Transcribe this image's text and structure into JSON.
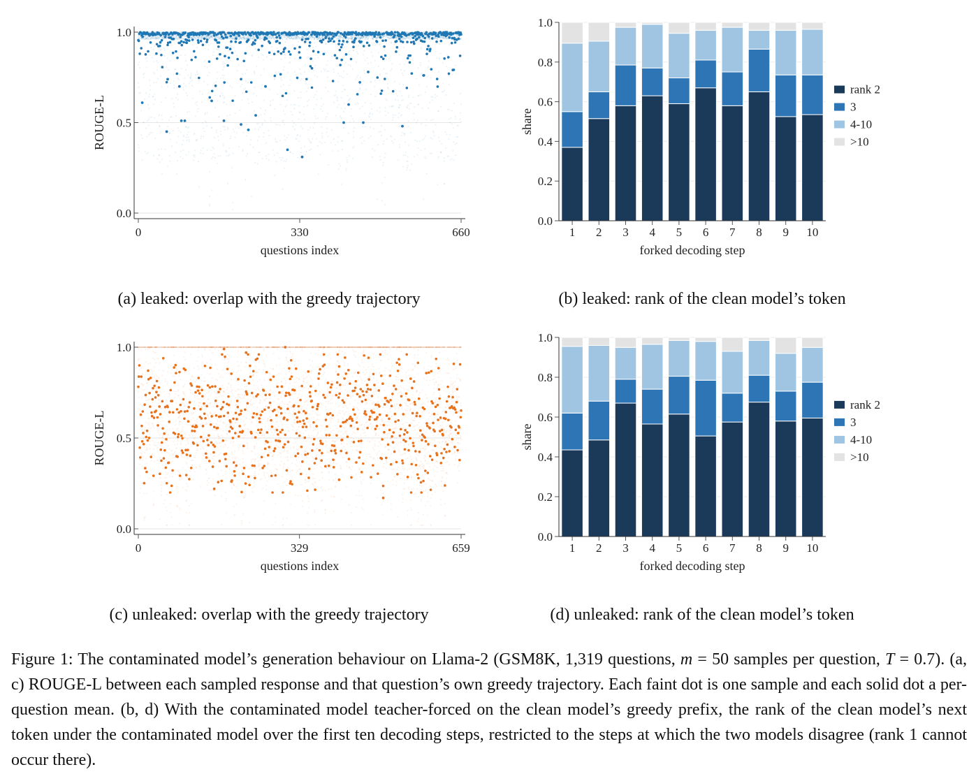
{
  "colors": {
    "leaked": "#1f77b4",
    "unleaked": "#e8721c",
    "rank2": "#1b3a5a",
    "rank3": "#2e75b6",
    "rank4_10": "#9fc5e3",
    "rank_gt10": "#e3e3e3"
  },
  "panels": {
    "a": {
      "caption": "(a) leaked: overlap with the greedy trajectory"
    },
    "b": {
      "caption": "(b) leaked: rank of the clean model’s token"
    },
    "c": {
      "caption": "(c) unleaked: overlap with the greedy trajectory"
    },
    "d": {
      "caption": "(d) unleaked: rank of the clean model’s token"
    }
  },
  "figure_caption": {
    "p1": "Figure 1: The contaminated model’s generation behaviour on Llama-2 (GSM8K, 1,319 questions, ",
    "m": "m",
    "p2": " = 50 samples per question, ",
    "t": "T",
    "p3": " = 0.7). (a, c) ROUGE-L between each sampled response and that question’s own greedy trajectory. Each faint dot is one sample and each solid dot a per-question mean. (b, d) With the contaminated model teacher-forced on the clean model’s greedy prefix, the rank of the clean model’s next token under the contaminated model over the first ten decoding steps, restricted to the steps at which the two models disagree (rank 1 cannot occur there)."
  },
  "chart_data": [
    {
      "id": "a",
      "type": "scatter",
      "xlabel": "questions index",
      "ylabel": "ROUGE-L",
      "xlim": [
        0,
        660
      ],
      "ylim": [
        0,
        1
      ],
      "xticks": [
        0,
        330,
        660
      ],
      "yticks": [
        "0.0",
        "0.5",
        "1.0"
      ],
      "grid": true,
      "color": "#1f77b4",
      "n_questions": 661,
      "mean_distribution": "most per-question means near 1.0, sparse tail down to about 0.3",
      "highlighted_means": [
        {
          "x": 8,
          "y": 0.61
        },
        {
          "x": 58,
          "y": 0.45
        },
        {
          "x": 88,
          "y": 0.51
        },
        {
          "x": 95,
          "y": 0.51
        },
        {
          "x": 175,
          "y": 0.51
        },
        {
          "x": 210,
          "y": 0.49
        },
        {
          "x": 225,
          "y": 0.46
        },
        {
          "x": 240,
          "y": 0.54
        },
        {
          "x": 305,
          "y": 0.35
        },
        {
          "x": 335,
          "y": 0.31
        },
        {
          "x": 420,
          "y": 0.5
        },
        {
          "x": 460,
          "y": 0.5
        },
        {
          "x": 540,
          "y": 0.48
        },
        {
          "x": 60,
          "y": 0.74
        },
        {
          "x": 84,
          "y": 0.7
        },
        {
          "x": 260,
          "y": 0.7
        },
        {
          "x": 355,
          "y": 0.8
        },
        {
          "x": 470,
          "y": 0.78
        },
        {
          "x": 150,
          "y": 0.62
        },
        {
          "x": 430,
          "y": 0.6
        }
      ]
    },
    {
      "id": "b",
      "type": "bar",
      "stacked": true,
      "xlabel": "forked decoding step",
      "ylabel": "share",
      "ylim": [
        0,
        1
      ],
      "yticks": [
        "0.0",
        "0.2",
        "0.4",
        "0.6",
        "0.8",
        "1.0"
      ],
      "legend_position": "right",
      "categories": [
        "1",
        "2",
        "3",
        "4",
        "5",
        "6",
        "7",
        "8",
        "9",
        "10"
      ],
      "series": [
        {
          "name": "rank 2",
          "color": "#1b3a5a",
          "values": [
            0.37,
            0.515,
            0.58,
            0.63,
            0.59,
            0.67,
            0.58,
            0.65,
            0.525,
            0.535
          ]
        },
        {
          "name": "3",
          "color": "#2e75b6",
          "values": [
            0.18,
            0.135,
            0.205,
            0.14,
            0.13,
            0.14,
            0.17,
            0.215,
            0.21,
            0.2
          ]
        },
        {
          "name": "4-10",
          "color": "#9fc5e3",
          "values": [
            0.345,
            0.255,
            0.19,
            0.22,
            0.225,
            0.15,
            0.225,
            0.095,
            0.225,
            0.23
          ]
        },
        {
          "name": ">10",
          "color": "#e3e3e3",
          "values": [
            0.105,
            0.095,
            0.025,
            0.01,
            0.055,
            0.04,
            0.025,
            0.04,
            0.04,
            0.035
          ]
        }
      ]
    },
    {
      "id": "c",
      "type": "scatter",
      "xlabel": "questions index",
      "ylabel": "ROUGE-L",
      "xlim": [
        0,
        659
      ],
      "ylim": [
        0,
        1
      ],
      "xticks": [
        0,
        329,
        659
      ],
      "yticks": [
        "0.0",
        "0.5",
        "1.0"
      ],
      "grid": true,
      "color": "#e8721c",
      "n_questions": 660,
      "mean_distribution": "per-question means spread roughly between 0.2 and 1.0, centred near 0.6",
      "highlighted_means": [
        {
          "x": 300,
          "y": 1.0
        },
        {
          "x": 175,
          "y": 0.99
        },
        {
          "x": 220,
          "y": 0.97
        },
        {
          "x": 500,
          "y": 0.17
        },
        {
          "x": 190,
          "y": 0.26
        },
        {
          "x": 155,
          "y": 0.22
        },
        {
          "x": 310,
          "y": 0.25
        },
        {
          "x": 410,
          "y": 0.27
        }
      ]
    },
    {
      "id": "d",
      "type": "bar",
      "stacked": true,
      "xlabel": "forked decoding step",
      "ylabel": "share",
      "ylim": [
        0,
        1
      ],
      "yticks": [
        "0.0",
        "0.2",
        "0.4",
        "0.6",
        "0.8",
        "1.0"
      ],
      "legend_position": "right",
      "categories": [
        "1",
        "2",
        "3",
        "4",
        "5",
        "6",
        "7",
        "8",
        "9",
        "10"
      ],
      "series": [
        {
          "name": "rank 2",
          "color": "#1b3a5a",
          "values": [
            0.435,
            0.485,
            0.67,
            0.565,
            0.615,
            0.505,
            0.575,
            0.675,
            0.58,
            0.595
          ]
        },
        {
          "name": "3",
          "color": "#2e75b6",
          "values": [
            0.185,
            0.195,
            0.12,
            0.175,
            0.19,
            0.28,
            0.145,
            0.135,
            0.15,
            0.18
          ]
        },
        {
          "name": "4-10",
          "color": "#9fc5e3",
          "values": [
            0.335,
            0.28,
            0.16,
            0.225,
            0.18,
            0.195,
            0.21,
            0.175,
            0.19,
            0.175
          ]
        },
        {
          "name": ">10",
          "color": "#e3e3e3",
          "values": [
            0.045,
            0.04,
            0.05,
            0.035,
            0.015,
            0.02,
            0.07,
            0.015,
            0.08,
            0.05
          ]
        }
      ]
    }
  ]
}
